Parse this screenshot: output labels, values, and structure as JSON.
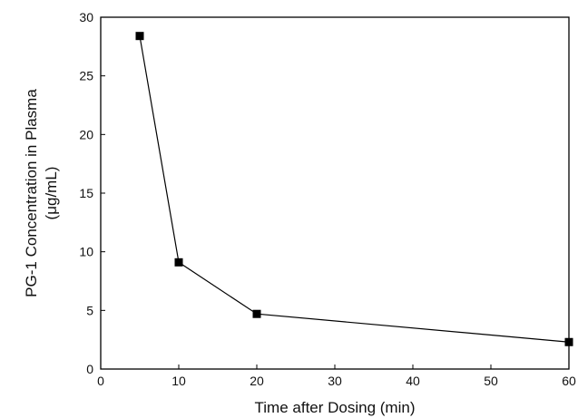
{
  "chart_data": {
    "type": "line",
    "title": "",
    "xlabel": "Time after Dosing (min)",
    "ylabel_line1": "PG-1 Concentration in Plasma",
    "ylabel_line2": "(μg/mL)",
    "xlim": [
      0,
      60
    ],
    "ylim": [
      0,
      30
    ],
    "xticks": [
      "0",
      "10",
      "20",
      "30",
      "40",
      "50",
      "60"
    ],
    "yticks": [
      "0",
      "5",
      "10",
      "15",
      "20",
      "25",
      "30"
    ],
    "grid": false,
    "legend": "none",
    "marker": "square",
    "series": [
      {
        "x": [
          5,
          10,
          20,
          60
        ],
        "y": [
          28.4,
          9.1,
          4.7,
          2.3
        ]
      }
    ]
  }
}
